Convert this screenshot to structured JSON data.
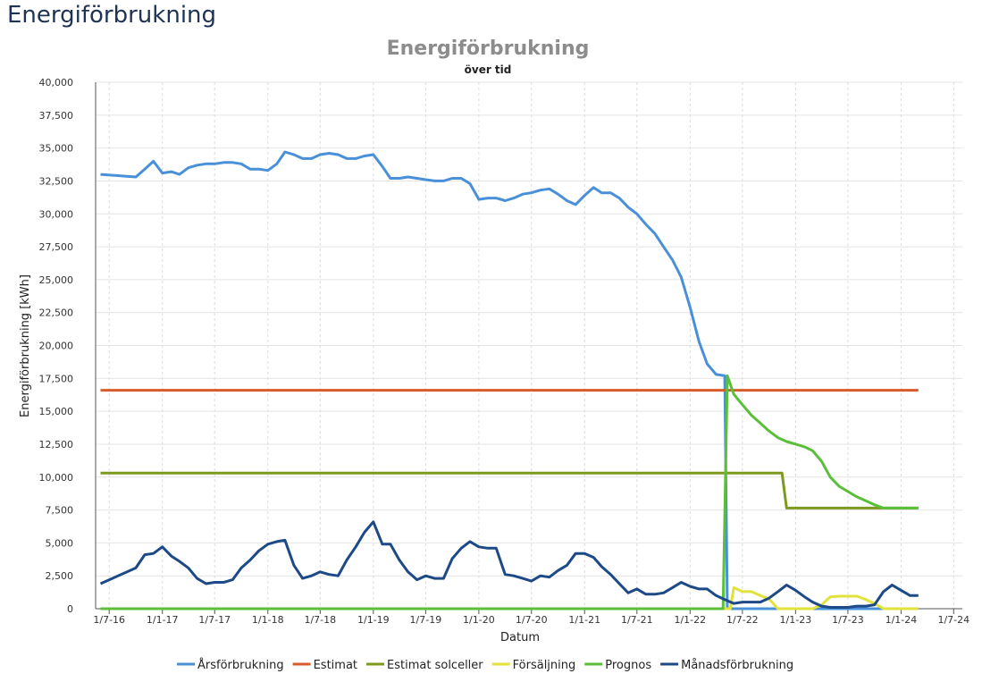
{
  "page": {
    "title": "Energiförbrukning"
  },
  "chart_data": {
    "type": "line",
    "title": "Energiförbrukning",
    "subtitle": "över tid",
    "xlabel": "Datum",
    "ylabel": "Energiförbrukning [kWh]",
    "ylim": [
      0,
      40000
    ],
    "yticks": [
      "0",
      "2,500",
      "5,000",
      "7,500",
      "10,000",
      "12,500",
      "15,000",
      "17,500",
      "20,000",
      "22,500",
      "25,000",
      "27,500",
      "30,000",
      "32,500",
      "35,000",
      "37,500",
      "40,000"
    ],
    "xticks": [
      "1/7-16",
      "1/1-17",
      "1/7-17",
      "1/1-18",
      "1/7-18",
      "1/1-19",
      "1/7-19",
      "1/1-20",
      "1/7-20",
      "1/1-21",
      "1/7-21",
      "1/1-22",
      "1/7-22",
      "1/1-23",
      "1/7-23",
      "1/1-24",
      "1/7-24"
    ],
    "xlim": [
      "2016-05-15",
      "2024-07-31"
    ],
    "grid": true,
    "legend_position": "bottom",
    "series": [
      {
        "name": "Årsförbrukning",
        "color": "#4a90d9",
        "x": [
          "2016-06-01",
          "2016-10-01",
          "2016-11-01",
          "2016-12-01",
          "2017-01-01",
          "2017-02-01",
          "2017-03-01",
          "2017-04-01",
          "2017-05-01",
          "2017-06-01",
          "2017-07-01",
          "2017-08-01",
          "2017-09-01",
          "2017-10-01",
          "2017-11-01",
          "2017-12-01",
          "2018-01-01",
          "2018-02-01",
          "2018-03-01",
          "2018-04-01",
          "2018-05-01",
          "2018-06-01",
          "2018-07-01",
          "2018-08-01",
          "2018-09-01",
          "2018-10-01",
          "2018-11-01",
          "2018-12-01",
          "2019-01-01",
          "2019-02-01",
          "2019-03-01",
          "2019-04-01",
          "2019-05-01",
          "2019-06-01",
          "2019-07-01",
          "2019-08-01",
          "2019-09-01",
          "2019-10-01",
          "2019-11-01",
          "2019-12-01",
          "2020-01-01",
          "2020-02-01",
          "2020-03-01",
          "2020-04-01",
          "2020-05-01",
          "2020-06-01",
          "2020-07-01",
          "2020-08-01",
          "2020-09-01",
          "2020-10-01",
          "2020-11-01",
          "2020-12-01",
          "2021-01-01",
          "2021-02-01",
          "2021-03-01",
          "2021-04-01",
          "2021-05-01",
          "2021-06-01",
          "2021-07-01",
          "2021-08-01",
          "2021-09-01",
          "2021-10-01",
          "2021-11-01",
          "2021-12-01",
          "2022-01-01",
          "2022-02-01",
          "2022-03-01",
          "2022-04-01",
          "2022-05-01",
          "2022-05-10",
          "2022-05-20",
          "2022-06-01",
          "2024-03-01"
        ],
        "values": [
          33000,
          32800,
          33400,
          34000,
          33100,
          33200,
          33000,
          33500,
          33700,
          33800,
          33800,
          33900,
          33900,
          33800,
          33400,
          33400,
          33300,
          33800,
          34700,
          34500,
          34200,
          34200,
          34500,
          34600,
          34500,
          34200,
          34200,
          34400,
          34500,
          33600,
          32700,
          32700,
          32800,
          32700,
          32600,
          32500,
          32500,
          32700,
          32700,
          32300,
          31100,
          31200,
          31200,
          31000,
          31200,
          31500,
          31600,
          31800,
          31900,
          31500,
          31000,
          30700,
          31400,
          32000,
          31600,
          31600,
          31200,
          30500,
          30000,
          29200,
          28500,
          27500,
          26500,
          25200,
          22900,
          20300,
          18600,
          17800,
          17700,
          0,
          0,
          0,
          0
        ]
      },
      {
        "name": "Estimat",
        "color": "#d95b2a",
        "x": [
          "2016-06-01",
          "2024-03-01"
        ],
        "values": [
          16600,
          16600
        ]
      },
      {
        "name": "Estimat solceller",
        "color": "#7d9a1e",
        "x": [
          "2016-06-01",
          "2022-11-15",
          "2022-12-01",
          "2024-03-01"
        ],
        "values": [
          10300,
          10300,
          7650,
          7650
        ]
      },
      {
        "name": "Försäljning",
        "color": "#e2e23c",
        "x": [
          "2016-06-01",
          "2022-05-20",
          "2022-06-01",
          "2022-07-01",
          "2022-08-01",
          "2022-09-01",
          "2022-10-01",
          "2022-11-01",
          "2022-12-01",
          "2023-01-01",
          "2023-02-01",
          "2023-03-01",
          "2023-04-01",
          "2023-05-01",
          "2023-06-01",
          "2023-07-01",
          "2023-08-01",
          "2023-09-01",
          "2023-10-01",
          "2023-11-01",
          "2024-03-01"
        ],
        "values": [
          0,
          0,
          1600,
          1300,
          1300,
          1000,
          750,
          0,
          0,
          0,
          0,
          0,
          300,
          900,
          950,
          950,
          950,
          700,
          400,
          0,
          0
        ]
      },
      {
        "name": "Prognos",
        "color": "#5bbf3a",
        "x": [
          "2016-06-01",
          "2022-04-25",
          "2022-05-10",
          "2022-06-01",
          "2022-07-01",
          "2022-08-01",
          "2022-09-01",
          "2022-10-01",
          "2022-11-01",
          "2022-12-01",
          "2023-01-01",
          "2023-02-01",
          "2023-03-01",
          "2023-04-01",
          "2023-05-01",
          "2023-06-01",
          "2023-07-01",
          "2023-08-01",
          "2023-09-01",
          "2023-10-01",
          "2023-11-01",
          "2024-03-01"
        ],
        "values": [
          0,
          0,
          17700,
          16300,
          15500,
          14700,
          14100,
          13500,
          13000,
          12700,
          12500,
          12300,
          12000,
          11200,
          10000,
          9300,
          8900,
          8500,
          8200,
          7900,
          7650,
          7650
        ]
      },
      {
        "name": "Månadsförbrukning",
        "color": "#1d4a86",
        "x": [
          "2016-06-01",
          "2016-10-01",
          "2016-11-01",
          "2016-12-01",
          "2017-01-01",
          "2017-02-01",
          "2017-03-01",
          "2017-04-01",
          "2017-05-01",
          "2017-06-01",
          "2017-07-01",
          "2017-08-01",
          "2017-09-01",
          "2017-10-01",
          "2017-11-01",
          "2017-12-01",
          "2018-01-01",
          "2018-02-01",
          "2018-03-01",
          "2018-04-01",
          "2018-05-01",
          "2018-06-01",
          "2018-07-01",
          "2018-08-01",
          "2018-09-01",
          "2018-10-01",
          "2018-11-01",
          "2018-12-01",
          "2019-01-01",
          "2019-02-01",
          "2019-03-01",
          "2019-04-01",
          "2019-05-01",
          "2019-06-01",
          "2019-07-01",
          "2019-08-01",
          "2019-09-01",
          "2019-10-01",
          "2019-11-01",
          "2019-12-01",
          "2020-01-01",
          "2020-02-01",
          "2020-03-01",
          "2020-04-01",
          "2020-05-01",
          "2020-06-01",
          "2020-07-01",
          "2020-08-01",
          "2020-09-01",
          "2020-10-01",
          "2020-11-01",
          "2020-12-01",
          "2021-01-01",
          "2021-02-01",
          "2021-03-01",
          "2021-04-01",
          "2021-05-01",
          "2021-06-01",
          "2021-07-01",
          "2021-08-01",
          "2021-09-01",
          "2021-10-01",
          "2021-11-01",
          "2021-12-01",
          "2022-01-01",
          "2022-02-01",
          "2022-03-01",
          "2022-04-01",
          "2022-05-01",
          "2022-06-01",
          "2022-07-01",
          "2022-08-01",
          "2022-09-01",
          "2022-10-01",
          "2022-11-01",
          "2022-12-01",
          "2023-01-01",
          "2023-02-01",
          "2023-03-01",
          "2023-04-01",
          "2023-05-01",
          "2023-06-01",
          "2023-07-01",
          "2023-08-01",
          "2023-09-01",
          "2023-10-01",
          "2023-11-01",
          "2023-12-01",
          "2024-01-01",
          "2024-02-01",
          "2024-03-01"
        ],
        "values": [
          1900,
          3100,
          4100,
          4200,
          4700,
          4000,
          3600,
          3100,
          2300,
          1900,
          2000,
          2000,
          2200,
          3100,
          3700,
          4400,
          4900,
          5100,
          5200,
          3300,
          2300,
          2500,
          2800,
          2600,
          2500,
          3700,
          4700,
          5800,
          6600,
          4900,
          4900,
          3700,
          2800,
          2200,
          2500,
          2300,
          2300,
          3800,
          4600,
          5100,
          4700,
          4600,
          4600,
          2600,
          2500,
          2300,
          2100,
          2500,
          2400,
          2900,
          3300,
          4200,
          4200,
          3900,
          3200,
          2600,
          1900,
          1200,
          1500,
          1100,
          1100,
          1200,
          1600,
          2000,
          1700,
          1500,
          1500,
          1000,
          700,
          400,
          500,
          500,
          500,
          800,
          1300,
          1800,
          1400,
          900,
          500,
          200,
          100,
          100,
          100,
          200,
          200,
          300,
          1300,
          1800,
          1400,
          1000,
          1000
        ]
      }
    ]
  }
}
